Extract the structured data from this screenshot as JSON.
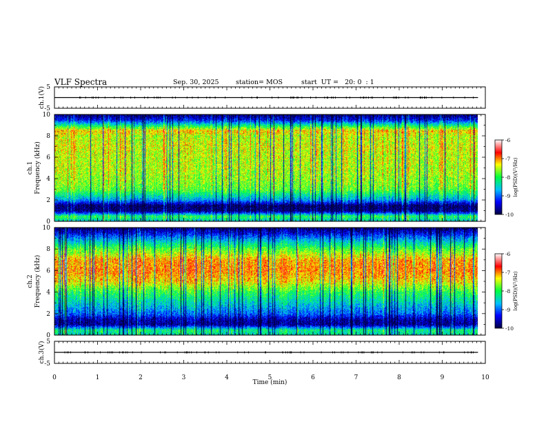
{
  "header": {
    "title": "VLF Spectra",
    "date": "Sep. 30, 2025",
    "station": "station= MOS",
    "start_ut": "start  UT =   20: 0  : 1"
  },
  "chart_data": [
    {
      "type": "line",
      "panel": "ch1-waveform",
      "ylabel": "ch.1(V)",
      "ylim": [
        -5,
        5
      ],
      "yticks": [
        "5",
        "-5"
      ],
      "xlim": [
        0,
        10
      ],
      "series": [
        {
          "x": [
            0,
            9.83
          ],
          "y": [
            0,
            0
          ]
        }
      ]
    },
    {
      "type": "heatmap",
      "panel": "ch1-spectrogram",
      "ylabel": "ch.1\nFrequency (kHz)",
      "ylim": [
        0,
        10
      ],
      "yticks": [
        "0",
        "2",
        "4",
        "6",
        "8",
        "10"
      ],
      "xlim": [
        0,
        10
      ],
      "data_xmax": 9.83,
      "intensity_profile_freq_khz": [
        0,
        0.5,
        1,
        1.5,
        2,
        2.5,
        3,
        4,
        5,
        6,
        7,
        8,
        8.5,
        9,
        9.5,
        10
      ],
      "intensity_profile_log_psd": [
        -8.6,
        -8.0,
        -9.8,
        -9.9,
        -8.8,
        -8.3,
        -7.8,
        -7.6,
        -7.5,
        -7.5,
        -7.4,
        -7.5,
        -7.2,
        -8.2,
        -9.3,
        -9.8
      ],
      "colorbar": {
        "label": "log(PSD)(V²/Hz)",
        "min": -10,
        "max": -6,
        "ticks": [
          "-6",
          "-7",
          "-8",
          "-9",
          "-10"
        ]
      }
    },
    {
      "type": "heatmap",
      "panel": "ch2-spectrogram",
      "ylabel": "ch.2\nFrequency (kHz)",
      "ylim": [
        0,
        10
      ],
      "yticks": [
        "0",
        "2",
        "4",
        "6",
        "8",
        "10"
      ],
      "xlim": [
        0,
        10
      ],
      "data_xmax": 9.83,
      "intensity_profile_freq_khz": [
        0,
        0.5,
        1,
        1.5,
        2,
        3,
        4,
        5,
        6,
        7,
        8,
        8.5,
        9,
        9.5,
        10
      ],
      "intensity_profile_log_psd": [
        -8.4,
        -8.2,
        -9.7,
        -9.6,
        -9.0,
        -8.5,
        -8.0,
        -7.3,
        -7.0,
        -7.1,
        -7.8,
        -8.3,
        -8.8,
        -9.4,
        -9.8
      ],
      "colorbar": {
        "label": "log(PSD)(V²/Hz)",
        "min": -10,
        "max": -6,
        "ticks": [
          "-6",
          "-7",
          "-8",
          "-9",
          "-10"
        ]
      }
    },
    {
      "type": "line",
      "panel": "ch3-waveform",
      "ylabel": "ch.3(V)",
      "ylim": [
        -5,
        5
      ],
      "yticks": [
        "5",
        "-5"
      ],
      "xlim": [
        0,
        10
      ],
      "series": [
        {
          "x": [
            0,
            9.83
          ],
          "y": [
            0,
            0
          ]
        }
      ]
    }
  ],
  "xaxis": {
    "label": "Time (min)",
    "ticks": [
      "0",
      "1",
      "2",
      "3",
      "4",
      "5",
      "6",
      "7",
      "8",
      "9",
      "10"
    ]
  },
  "colors": {
    "colormap": [
      "#000040",
      "#0000ff",
      "#00c0ff",
      "#00ff40",
      "#ffff00",
      "#ff0000",
      "#ffffff"
    ]
  }
}
